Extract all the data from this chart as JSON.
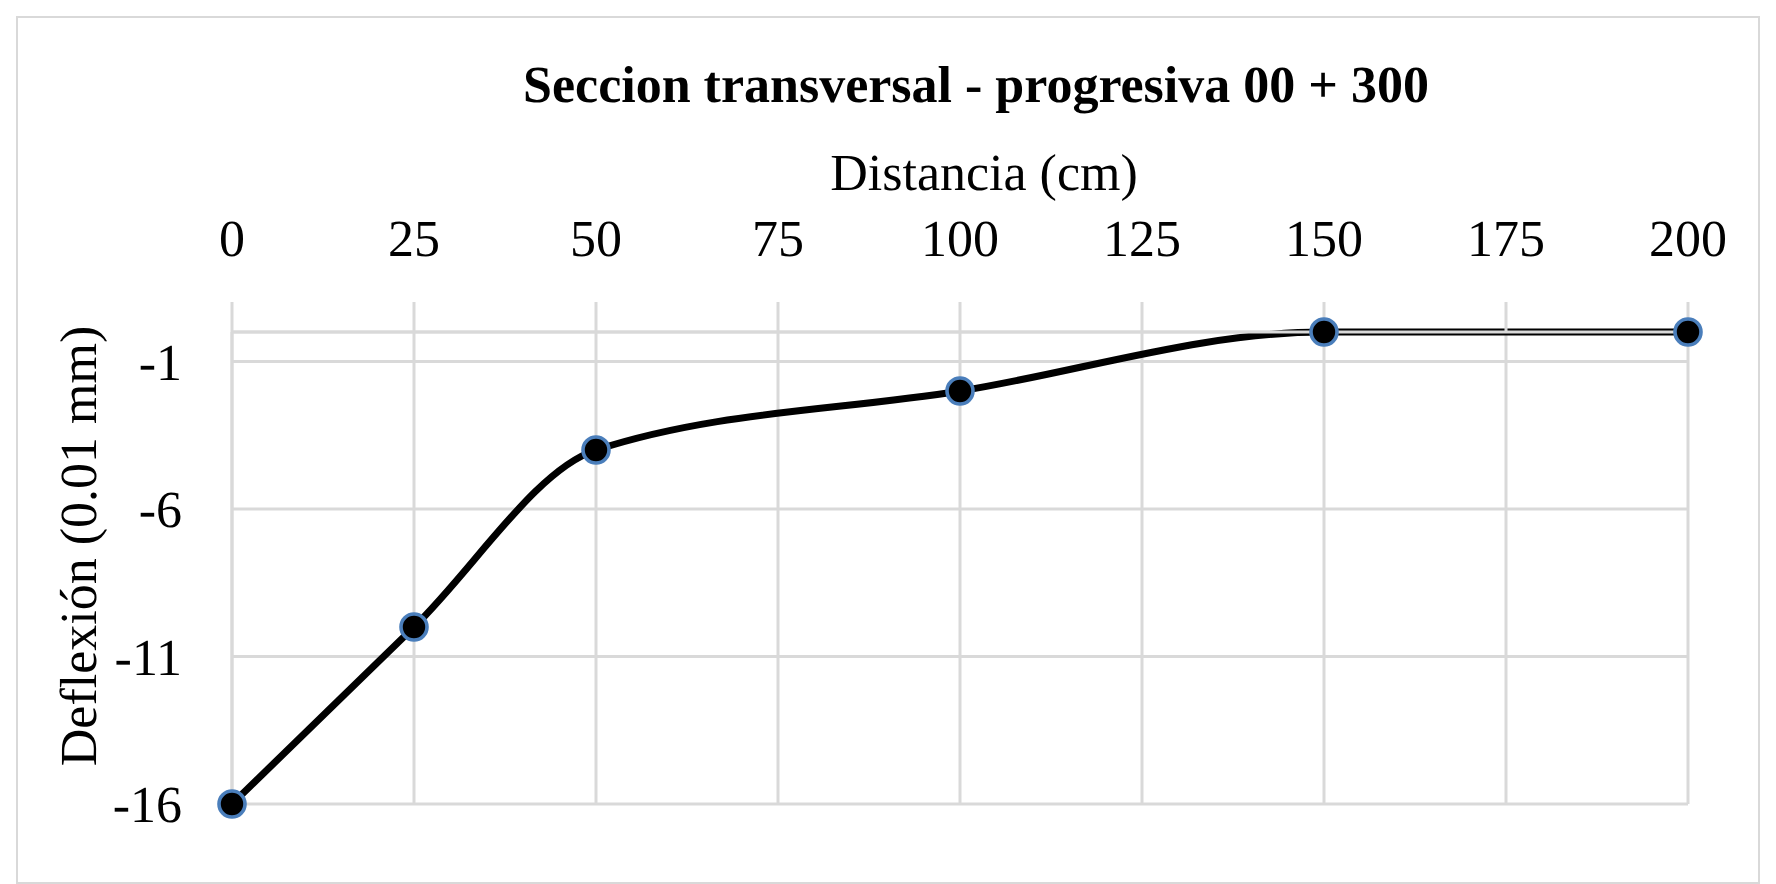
{
  "chart_data": {
    "type": "line",
    "title": "Seccion transversal - progresiva 00 + 300",
    "xlabel": "Distancia (cm)",
    "ylabel": "Deflexión (0.01 mm)",
    "x": [
      0,
      25,
      50,
      100,
      150,
      200
    ],
    "series": [
      {
        "color": "#000000",
        "values": [
          -16,
          -10,
          -4,
          -2,
          0,
          0
        ]
      }
    ],
    "xlim": [
      0,
      200
    ],
    "xticks": [
      0,
      25,
      50,
      75,
      100,
      125,
      150,
      175,
      200
    ],
    "ylim": [
      -16,
      0
    ],
    "yticks": [
      -16,
      -11,
      -6,
      -1
    ],
    "grid": true,
    "marker": "circle",
    "line_style": "solid"
  }
}
